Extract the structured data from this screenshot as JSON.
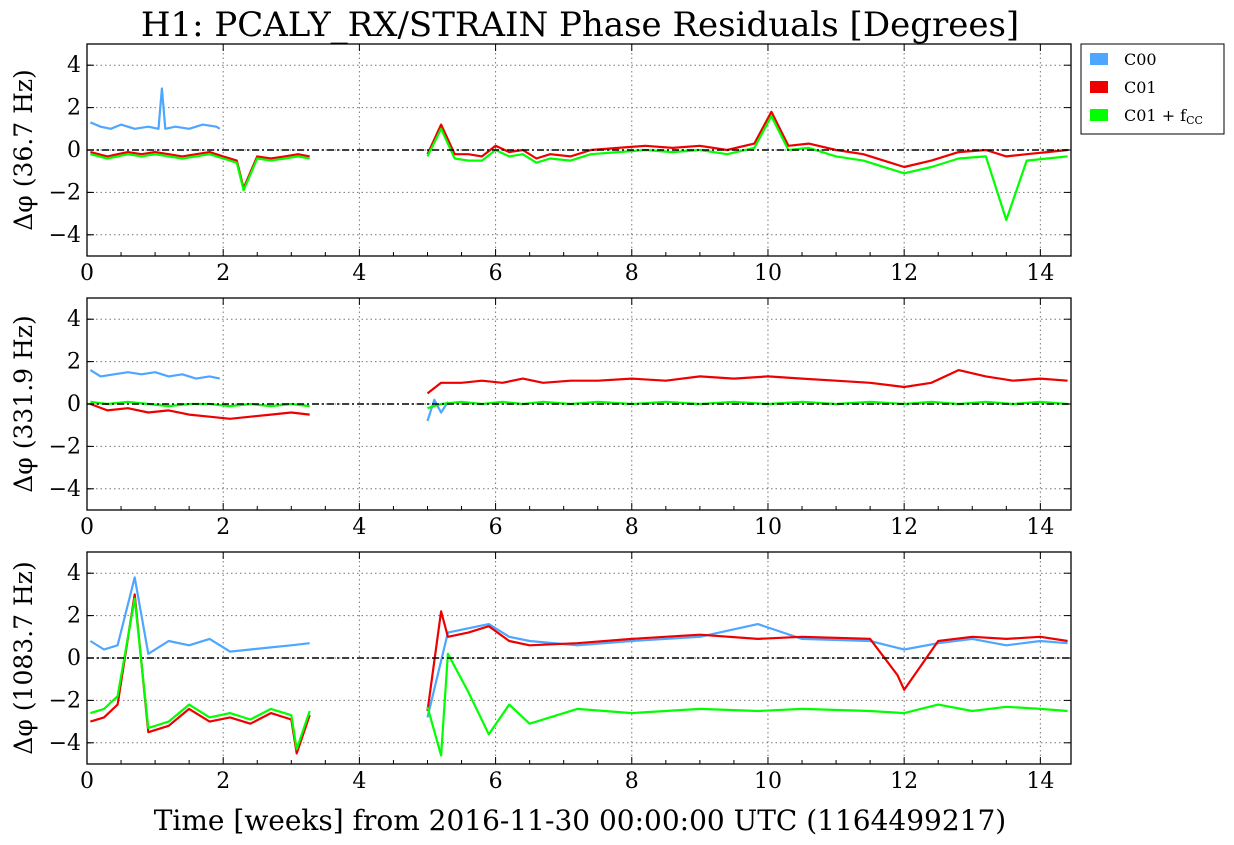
{
  "figure": {
    "title": "H1: PCALY_RX/STRAIN Phase Residuals [Degrees]",
    "xlabel": "Time [weeks] from 2016-11-30 00:00:00 UTC (1164499217)"
  },
  "legend": {
    "placement": "outside-top-right",
    "entries": [
      {
        "label": "C00",
        "color": "#4da6ff"
      },
      {
        "label": "C01",
        "color": "#ee0000"
      },
      {
        "label": "C01 + fCC",
        "base": "C01 + f",
        "sub": "CC",
        "color": "#00ff00"
      }
    ]
  },
  "chart_data": [
    {
      "type": "line",
      "ylabel": "Δφ (36.7 Hz)",
      "xlim": [
        0,
        14.45
      ],
      "ylim": [
        -5,
        5
      ],
      "xticks": [
        "0",
        "2",
        "4",
        "6",
        "8",
        "10",
        "12",
        "14"
      ],
      "yticks": [
        "4",
        "2",
        "0",
        "−2",
        "−4"
      ],
      "grid": true,
      "reference_line_y": 0,
      "series": [
        {
          "name": "C00",
          "color": "#4da6ff",
          "x": [
            0.05,
            0.2,
            0.35,
            0.5,
            0.7,
            0.9,
            1.05,
            1.1,
            1.15,
            1.3,
            1.5,
            1.7,
            1.9,
            1.95
          ],
          "y": [
            1.3,
            1.1,
            1.0,
            1.2,
            1.0,
            1.1,
            1.0,
            2.9,
            1.0,
            1.1,
            1.0,
            1.2,
            1.1,
            1.0
          ]
        },
        {
          "name": "C01",
          "color": "#ee0000",
          "x": [
            0.05,
            0.3,
            0.45,
            0.6,
            0.8,
            1.0,
            1.2,
            1.4,
            1.6,
            1.8,
            2.0,
            2.2,
            2.3,
            2.5,
            2.7,
            2.9,
            3.1,
            3.27,
            5.0,
            5.2,
            5.4,
            5.6,
            5.8,
            6.0,
            6.2,
            6.4,
            6.6,
            6.8,
            7.1,
            7.4,
            7.8,
            8.2,
            8.6,
            9.0,
            9.4,
            9.8,
            10.05,
            10.3,
            10.6,
            11.0,
            11.4,
            11.8,
            12.0,
            12.4,
            12.8,
            13.2,
            13.5,
            13.8,
            14.1,
            14.4
          ],
          "y": [
            -0.1,
            -0.3,
            -0.2,
            -0.1,
            -0.2,
            -0.1,
            -0.2,
            -0.3,
            -0.2,
            -0.1,
            -0.3,
            -0.5,
            -1.8,
            -0.3,
            -0.4,
            -0.3,
            -0.2,
            -0.3,
            -0.2,
            1.2,
            -0.2,
            -0.2,
            -0.3,
            0.2,
            -0.1,
            0.0,
            -0.4,
            -0.2,
            -0.3,
            0.0,
            0.1,
            0.2,
            0.1,
            0.2,
            0.0,
            0.3,
            1.8,
            0.2,
            0.3,
            0.0,
            -0.2,
            -0.6,
            -0.8,
            -0.5,
            -0.1,
            0.0,
            -0.3,
            -0.2,
            -0.1,
            0.0
          ]
        },
        {
          "name": "C01 + fCC",
          "color": "#00ff00",
          "x": [
            0.05,
            0.3,
            0.45,
            0.6,
            0.8,
            1.0,
            1.2,
            1.4,
            1.6,
            1.8,
            2.0,
            2.2,
            2.3,
            2.5,
            2.7,
            2.9,
            3.1,
            3.27,
            5.0,
            5.2,
            5.4,
            5.6,
            5.8,
            6.0,
            6.2,
            6.4,
            6.6,
            6.8,
            7.1,
            7.4,
            7.8,
            8.2,
            8.6,
            9.0,
            9.4,
            9.8,
            10.05,
            10.3,
            10.6,
            11.0,
            11.4,
            11.8,
            12.0,
            12.4,
            12.8,
            13.2,
            13.5,
            13.8,
            14.1,
            14.4
          ],
          "y": [
            -0.2,
            -0.4,
            -0.3,
            -0.2,
            -0.3,
            -0.2,
            -0.3,
            -0.4,
            -0.3,
            -0.2,
            -0.4,
            -0.6,
            -1.9,
            -0.4,
            -0.5,
            -0.4,
            -0.3,
            -0.4,
            -0.3,
            1.0,
            -0.4,
            -0.5,
            -0.5,
            0.0,
            -0.3,
            -0.2,
            -0.6,
            -0.4,
            -0.5,
            -0.2,
            -0.1,
            0.0,
            -0.1,
            0.0,
            -0.2,
            0.1,
            1.6,
            0.0,
            0.1,
            -0.3,
            -0.5,
            -0.9,
            -1.1,
            -0.8,
            -0.4,
            -0.3,
            -3.3,
            -0.5,
            -0.4,
            -0.3
          ]
        }
      ]
    },
    {
      "type": "line",
      "ylabel": "Δφ (331.9 Hz)",
      "xlim": [
        0,
        14.45
      ],
      "ylim": [
        -5,
        5
      ],
      "xticks": [
        "0",
        "2",
        "4",
        "6",
        "8",
        "10",
        "12",
        "14"
      ],
      "yticks": [
        "4",
        "2",
        "0",
        "−2",
        "−4"
      ],
      "grid": true,
      "reference_line_y": 0,
      "series": [
        {
          "name": "C00",
          "color": "#4da6ff",
          "x": [
            0.05,
            0.2,
            0.4,
            0.6,
            0.8,
            1.0,
            1.2,
            1.4,
            1.6,
            1.8,
            1.95,
            5.0,
            5.1,
            5.2,
            5.3
          ],
          "y": [
            1.6,
            1.3,
            1.4,
            1.5,
            1.4,
            1.5,
            1.3,
            1.4,
            1.2,
            1.3,
            1.2,
            -0.8,
            0.2,
            -0.4,
            0.1
          ]
        },
        {
          "name": "C01",
          "color": "#ee0000",
          "x": [
            0.05,
            0.3,
            0.6,
            0.9,
            1.2,
            1.5,
            1.8,
            2.1,
            2.4,
            2.7,
            3.0,
            3.27,
            5.0,
            5.2,
            5.5,
            5.8,
            6.1,
            6.4,
            6.7,
            7.1,
            7.5,
            8.0,
            8.5,
            9.0,
            9.5,
            10.0,
            10.5,
            11.0,
            11.5,
            12.0,
            12.4,
            12.8,
            13.2,
            13.6,
            14.0,
            14.4
          ],
          "y": [
            0.0,
            -0.3,
            -0.2,
            -0.4,
            -0.3,
            -0.5,
            -0.6,
            -0.7,
            -0.6,
            -0.5,
            -0.4,
            -0.5,
            0.5,
            1.0,
            1.0,
            1.1,
            1.0,
            1.2,
            1.0,
            1.1,
            1.1,
            1.2,
            1.1,
            1.3,
            1.2,
            1.3,
            1.2,
            1.1,
            1.0,
            0.8,
            1.0,
            1.6,
            1.3,
            1.1,
            1.2,
            1.1
          ]
        },
        {
          "name": "C01 + fCC",
          "color": "#00ff00",
          "x": [
            0.05,
            0.3,
            0.6,
            0.9,
            1.2,
            1.5,
            1.8,
            2.1,
            2.4,
            2.7,
            3.0,
            3.27,
            5.0,
            5.2,
            5.5,
            5.8,
            6.1,
            6.4,
            6.7,
            7.1,
            7.5,
            8.0,
            8.5,
            9.0,
            9.5,
            10.0,
            10.5,
            11.0,
            11.5,
            12.0,
            12.4,
            12.8,
            13.2,
            13.6,
            14.0,
            14.4
          ],
          "y": [
            0.1,
            0.0,
            0.1,
            0.0,
            -0.1,
            0.0,
            0.0,
            -0.1,
            0.0,
            -0.1,
            0.0,
            -0.1,
            -0.2,
            0.0,
            0.1,
            0.0,
            0.1,
            0.0,
            0.1,
            0.0,
            0.1,
            0.0,
            0.1,
            0.0,
            0.1,
            0.0,
            0.1,
            0.0,
            0.1,
            0.0,
            0.1,
            0.0,
            0.1,
            0.0,
            0.1,
            0.0
          ]
        }
      ]
    },
    {
      "type": "line",
      "ylabel": "Δφ (1083.7 Hz)",
      "xlim": [
        0,
        14.45
      ],
      "ylim": [
        -5,
        5
      ],
      "xticks": [
        "0",
        "2",
        "4",
        "6",
        "8",
        "10",
        "12",
        "14"
      ],
      "yticks": [
        "4",
        "2",
        "0",
        "−2",
        "−4"
      ],
      "grid": true,
      "reference_line_y": 0,
      "series": [
        {
          "name": "C00",
          "color": "#4da6ff",
          "x": [
            0.05,
            0.25,
            0.45,
            0.7,
            0.9,
            1.2,
            1.5,
            1.8,
            2.1,
            2.4,
            2.7,
            3.0,
            3.27,
            5.0,
            5.3,
            5.6,
            5.9,
            6.2,
            6.5,
            7.2,
            8.0,
            9.0,
            9.85,
            10.5,
            11.5,
            12.0,
            12.5,
            13.0,
            13.5,
            14.0,
            14.4
          ],
          "y": [
            0.8,
            0.4,
            0.6,
            3.8,
            0.2,
            0.8,
            0.6,
            0.9,
            0.3,
            0.4,
            0.5,
            0.6,
            0.7,
            -2.8,
            1.2,
            1.4,
            1.6,
            1.0,
            0.8,
            0.6,
            0.8,
            1.0,
            1.6,
            0.9,
            0.8,
            0.4,
            0.7,
            0.9,
            0.6,
            0.8,
            0.7
          ]
        },
        {
          "name": "C01",
          "color": "#ee0000",
          "x": [
            0.05,
            0.25,
            0.45,
            0.7,
            0.9,
            1.2,
            1.5,
            1.8,
            2.1,
            2.4,
            2.7,
            3.0,
            3.08,
            3.27,
            5.0,
            5.2,
            5.3,
            5.6,
            5.9,
            6.2,
            6.5,
            7.2,
            8.0,
            9.0,
            9.85,
            10.5,
            11.5,
            11.9,
            12.0,
            12.5,
            13.0,
            13.5,
            14.0,
            14.4
          ],
          "y": [
            -3.0,
            -2.8,
            -2.2,
            3.0,
            -3.5,
            -3.2,
            -2.4,
            -3.0,
            -2.8,
            -3.1,
            -2.6,
            -2.9,
            -4.5,
            -2.7,
            -2.5,
            2.2,
            1.0,
            1.2,
            1.5,
            0.8,
            0.6,
            0.7,
            0.9,
            1.1,
            0.9,
            1.0,
            0.9,
            -0.8,
            -1.5,
            0.8,
            1.0,
            0.9,
            1.0,
            0.8
          ]
        },
        {
          "name": "C01 + fCC",
          "color": "#00ff00",
          "x": [
            0.05,
            0.25,
            0.45,
            0.7,
            0.9,
            1.2,
            1.5,
            1.8,
            2.1,
            2.4,
            2.7,
            3.0,
            3.08,
            3.27,
            5.0,
            5.2,
            5.3,
            5.6,
            5.9,
            6.2,
            6.5,
            7.2,
            8.0,
            9.0,
            9.85,
            10.5,
            11.5,
            12.0,
            12.5,
            13.0,
            13.5,
            14.0,
            14.4
          ],
          "y": [
            -2.6,
            -2.4,
            -1.8,
            2.8,
            -3.3,
            -3.0,
            -2.2,
            -2.8,
            -2.6,
            -2.9,
            -2.4,
            -2.7,
            -4.3,
            -2.5,
            -2.3,
            -4.6,
            0.2,
            -1.6,
            -3.6,
            -2.2,
            -3.1,
            -2.4,
            -2.6,
            -2.4,
            -2.5,
            -2.4,
            -2.5,
            -2.6,
            -2.2,
            -2.5,
            -2.3,
            -2.4,
            -2.5
          ]
        }
      ]
    }
  ]
}
